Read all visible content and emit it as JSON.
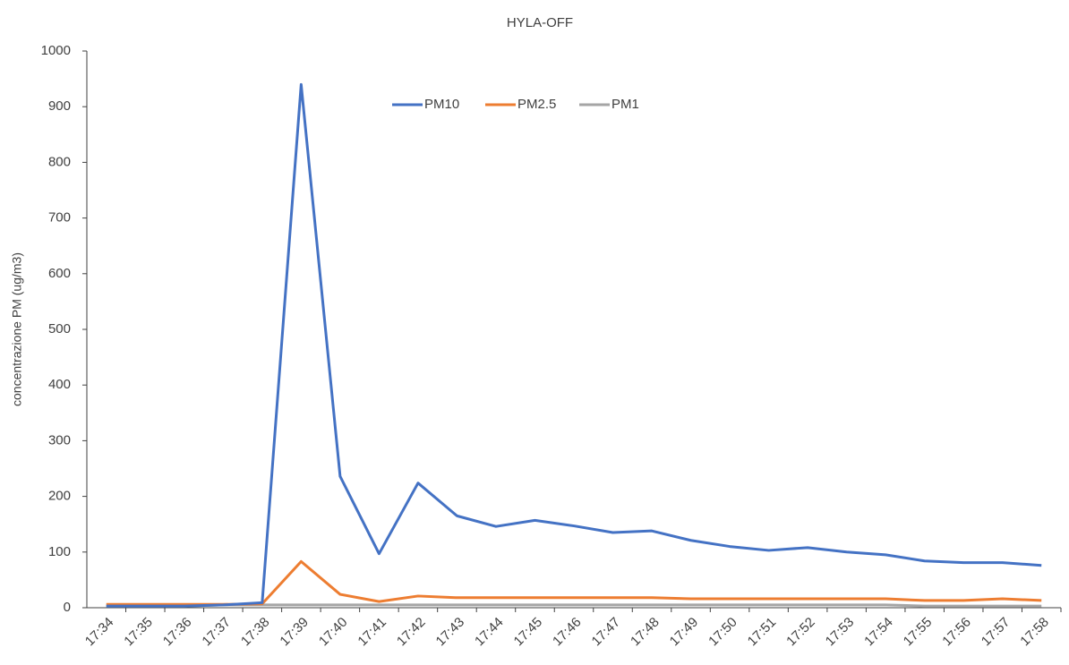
{
  "chart_data": {
    "type": "line",
    "title": "HYLA-OFF",
    "y_label": "concentrazione PM (ug/m3)",
    "categories": [
      "17:34",
      "17:35",
      "17:36",
      "17:37",
      "17:38",
      "17:39",
      "17:40",
      "17:41",
      "17:42",
      "17:43",
      "17:44",
      "17:45",
      "17:46",
      "17:47",
      "17:48",
      "17:49",
      "17:50",
      "17:51",
      "17:52",
      "17:53",
      "17:54",
      "17:55",
      "17:56",
      "17:57",
      "17:58"
    ],
    "series": [
      {
        "name": "PM10",
        "color": "#4472c4",
        "values": [
          3,
          3,
          3,
          5,
          9,
          940,
          236,
          97,
          224,
          165,
          146,
          157,
          147,
          135,
          138,
          121,
          110,
          103,
          108,
          100,
          95,
          84,
          81,
          81,
          76
        ]
      },
      {
        "name": "PM2.5",
        "color": "#ed7d31",
        "values": [
          6,
          6,
          6,
          6,
          7,
          83,
          24,
          11,
          21,
          18,
          18,
          18,
          18,
          18,
          18,
          16,
          16,
          16,
          16,
          16,
          16,
          13,
          13,
          16,
          13
        ]
      },
      {
        "name": "PM1",
        "color": "#a5a5a5",
        "values": [
          3,
          3,
          3,
          5,
          5,
          5,
          5,
          5,
          5,
          5,
          5,
          5,
          5,
          5,
          5,
          5,
          5,
          5,
          5,
          5,
          5,
          3,
          3,
          3,
          3
        ]
      }
    ],
    "ylim": [
      0,
      1000
    ],
    "yticks": [
      0,
      100,
      200,
      300,
      400,
      500,
      600,
      700,
      800,
      900,
      1000
    ],
    "legend": "top"
  }
}
